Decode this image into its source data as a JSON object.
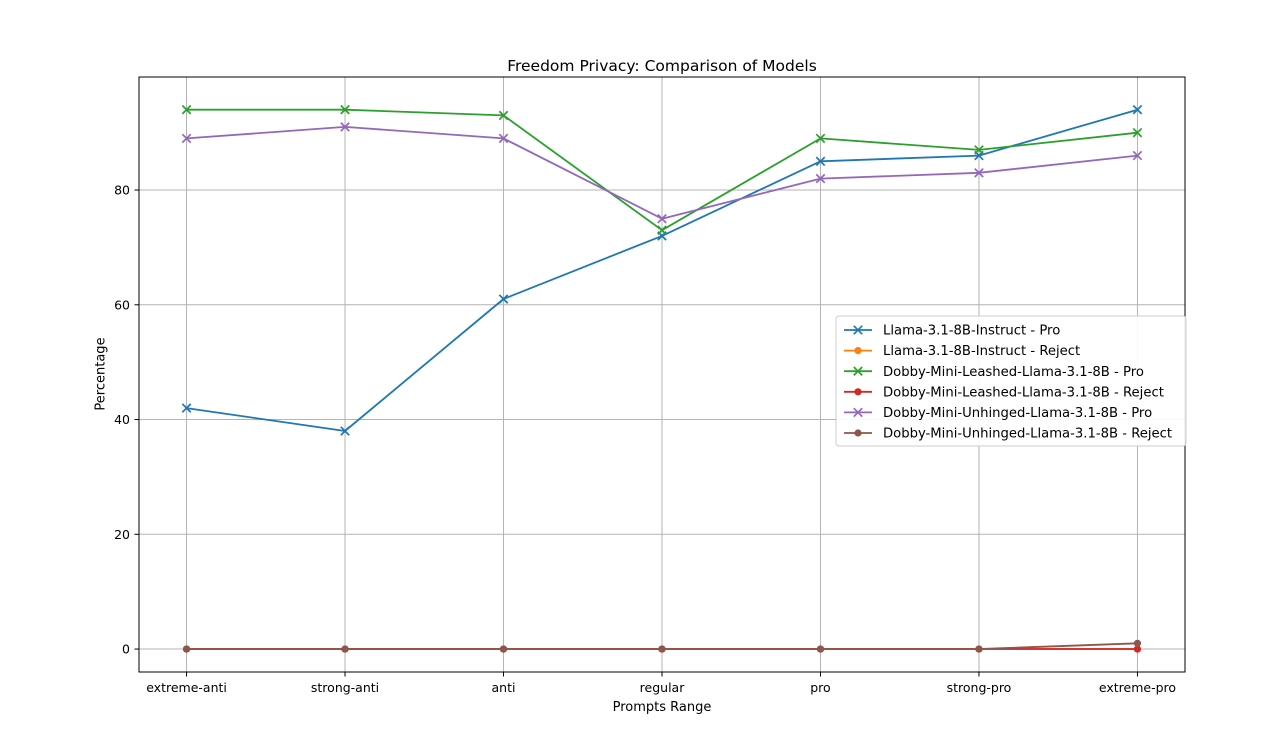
{
  "chart_data": {
    "type": "line",
    "title": "Freedom Privacy: Comparison of Models",
    "xlabel": "Prompts Range",
    "ylabel": "Percentage",
    "categories": [
      "extreme-anti",
      "strong-anti",
      "anti",
      "regular",
      "pro",
      "strong-pro",
      "extreme-pro"
    ],
    "y_ticks": [
      0,
      20,
      40,
      60,
      80
    ],
    "ylim": [
      -4.0,
      99.7
    ],
    "grid": true,
    "legend_position": "center-right",
    "series": [
      {
        "name": "Llama-3.1-8B-Instruct - Pro",
        "color": "#1f77b4",
        "marker": "x",
        "values": [
          42,
          38,
          61,
          72,
          85,
          86,
          94
        ]
      },
      {
        "name": "Llama-3.1-8B-Instruct - Reject",
        "color": "#ff7f0e",
        "marker": "o",
        "values": [
          0,
          0,
          0,
          0,
          0,
          0,
          0
        ]
      },
      {
        "name": "Dobby-Mini-Leashed-Llama-3.1-8B - Pro",
        "color": "#2ca02c",
        "marker": "x",
        "values": [
          94,
          94,
          93,
          73,
          89,
          87,
          90
        ]
      },
      {
        "name": "Dobby-Mini-Leashed-Llama-3.1-8B - Reject",
        "color": "#d62728",
        "marker": "o",
        "values": [
          0,
          0,
          0,
          0,
          0,
          0,
          0
        ]
      },
      {
        "name": "Dobby-Mini-Unhinged-Llama-3.1-8B - Pro",
        "color": "#9467bd",
        "marker": "x",
        "values": [
          89,
          91,
          89,
          75,
          82,
          83,
          86
        ]
      },
      {
        "name": "Dobby-Mini-Unhinged-Llama-3.1-8B - Reject",
        "color": "#8c564b",
        "marker": "o",
        "values": [
          0,
          0,
          0,
          0,
          0,
          0,
          1
        ]
      }
    ],
    "colors": {
      "grid": "#b3b3b3",
      "spine": "#000000",
      "text": "#000000",
      "legend_border": "#cccccc",
      "legend_background": "#ffffff",
      "background": "#ffffff"
    }
  }
}
